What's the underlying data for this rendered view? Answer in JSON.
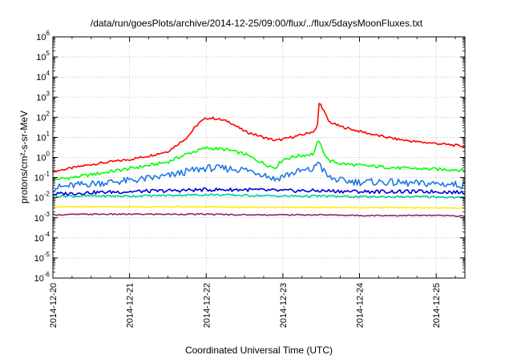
{
  "chart_data": {
    "type": "line",
    "title": "/data/run/goesPlots/archive/2014-12-25/09:00/flux/../flux/5daysMoonFluxes.txt",
    "xlabel": "Coordinated Universal Time (UTC)",
    "ylabel": "protons/cm²-s-sr-MeV",
    "y_scale": "log",
    "ylim": [
      1e-06,
      1000000.0
    ],
    "xlim": [
      "2014-12-20T00:00",
      "2014-12-25T09:00"
    ],
    "x_ticks": [
      "2014-12-20",
      "2014-12-21",
      "2014-12-22",
      "2014-12-23",
      "2014-12-24",
      "2014-12-25"
    ],
    "y_ticks": [
      {
        "value": 1e-06,
        "base": "10",
        "exp": "-6"
      },
      {
        "value": 1e-05,
        "base": "10",
        "exp": "-5"
      },
      {
        "value": 0.0001,
        "base": "10",
        "exp": "-4"
      },
      {
        "value": 0.001,
        "base": "10",
        "exp": "-3"
      },
      {
        "value": 0.01,
        "base": "10",
        "exp": "-2"
      },
      {
        "value": 0.1,
        "base": "10",
        "exp": "-1"
      },
      {
        "value": 1,
        "base": "10",
        "exp": "0"
      },
      {
        "value": 10,
        "base": "10",
        "exp": "1"
      },
      {
        "value": 100,
        "base": "10",
        "exp": "2"
      },
      {
        "value": 1000,
        "base": "10",
        "exp": "3"
      },
      {
        "value": 10000,
        "base": "10",
        "exp": "4"
      },
      {
        "value": 100000,
        "base": "10",
        "exp": "5"
      },
      {
        "value": 1000000,
        "base": "10",
        "exp": "6"
      }
    ],
    "grid": true,
    "legend": "none",
    "series": [
      {
        "color": "#ff0000",
        "x": [
          0,
          0.25,
          0.5,
          0.75,
          1,
          1.25,
          1.5,
          1.75,
          1.9,
          2,
          2.1,
          2.3,
          2.5,
          2.75,
          2.9,
          3.0,
          3.1,
          3.2,
          3.3,
          3.4,
          3.45,
          3.47,
          3.5,
          3.6,
          3.75,
          4,
          4.25,
          4.5,
          4.75,
          5,
          5.25,
          5.375
        ],
        "y": [
          0.2,
          0.3,
          0.45,
          0.6,
          0.8,
          1.2,
          2,
          10,
          50,
          90,
          90,
          60,
          20,
          10,
          7,
          8,
          10,
          12,
          15,
          20,
          30,
          500,
          400,
          60,
          35,
          20,
          12,
          8,
          6,
          5,
          4,
          3.5
        ]
      },
      {
        "color": "#00ff00",
        "x": [
          0,
          0.25,
          0.5,
          0.75,
          1,
          1.25,
          1.5,
          1.75,
          2,
          2.25,
          2.5,
          2.75,
          2.9,
          3.0,
          3.2,
          3.4,
          3.47,
          3.5,
          3.6,
          3.75,
          4,
          4.25,
          4.5,
          4.75,
          5,
          5.25,
          5.375
        ],
        "y": [
          0.08,
          0.1,
          0.14,
          0.2,
          0.28,
          0.4,
          0.6,
          1.5,
          3,
          2.5,
          1.5,
          0.5,
          0.3,
          0.8,
          1.2,
          1.5,
          8,
          3,
          0.7,
          0.5,
          0.4,
          0.35,
          0.3,
          0.28,
          0.26,
          0.25,
          0.22
        ]
      },
      {
        "color": "#1e78e6",
        "x": [
          0,
          0.25,
          0.5,
          0.75,
          1,
          1.25,
          1.5,
          1.75,
          2,
          2.25,
          2.5,
          2.75,
          2.9,
          3.0,
          3.2,
          3.4,
          3.47,
          3.5,
          3.6,
          3.75,
          4,
          4.25,
          4.5,
          4.75,
          5,
          5.25,
          5.375
        ],
        "y": [
          0.03,
          0.04,
          0.05,
          0.06,
          0.07,
          0.09,
          0.12,
          0.2,
          0.3,
          0.28,
          0.25,
          0.15,
          0.08,
          0.12,
          0.2,
          0.25,
          0.8,
          0.3,
          0.1,
          0.07,
          0.06,
          0.06,
          0.055,
          0.05,
          0.05,
          0.045,
          0.04
        ]
      },
      {
        "color": "#0000dd",
        "x": [
          0,
          0.5,
          1,
          1.5,
          2,
          2.5,
          3,
          3.5,
          4,
          4.5,
          5,
          5.375
        ],
        "y": [
          0.015,
          0.018,
          0.02,
          0.022,
          0.025,
          0.025,
          0.022,
          0.022,
          0.02,
          0.02,
          0.02,
          0.018
        ]
      },
      {
        "color": "#00cc99",
        "x": [
          0,
          0.5,
          1,
          1.5,
          2,
          2.5,
          3,
          3.5,
          4,
          4.5,
          5,
          5.375
        ],
        "y": [
          0.012,
          0.012,
          0.012,
          0.013,
          0.014,
          0.013,
          0.012,
          0.012,
          0.011,
          0.011,
          0.011,
          0.01
        ]
      },
      {
        "color": "#ffee00",
        "x": [
          0,
          0.5,
          1,
          1.5,
          2,
          2.5,
          3,
          3.5,
          4,
          4.5,
          5,
          5.375
        ],
        "y": [
          0.0035,
          0.0035,
          0.0035,
          0.0035,
          0.0035,
          0.0034,
          0.0033,
          0.0033,
          0.0032,
          0.0032,
          0.0031,
          0.003
        ]
      },
      {
        "color": "#8b2a6b",
        "x": [
          0,
          0.5,
          1,
          1.5,
          2,
          2.5,
          3,
          3.5,
          4,
          4.5,
          5,
          5.375
        ],
        "y": [
          0.0014,
          0.0015,
          0.0015,
          0.0015,
          0.0015,
          0.0014,
          0.0014,
          0.0014,
          0.0013,
          0.0013,
          0.0013,
          0.0012
        ]
      }
    ]
  }
}
